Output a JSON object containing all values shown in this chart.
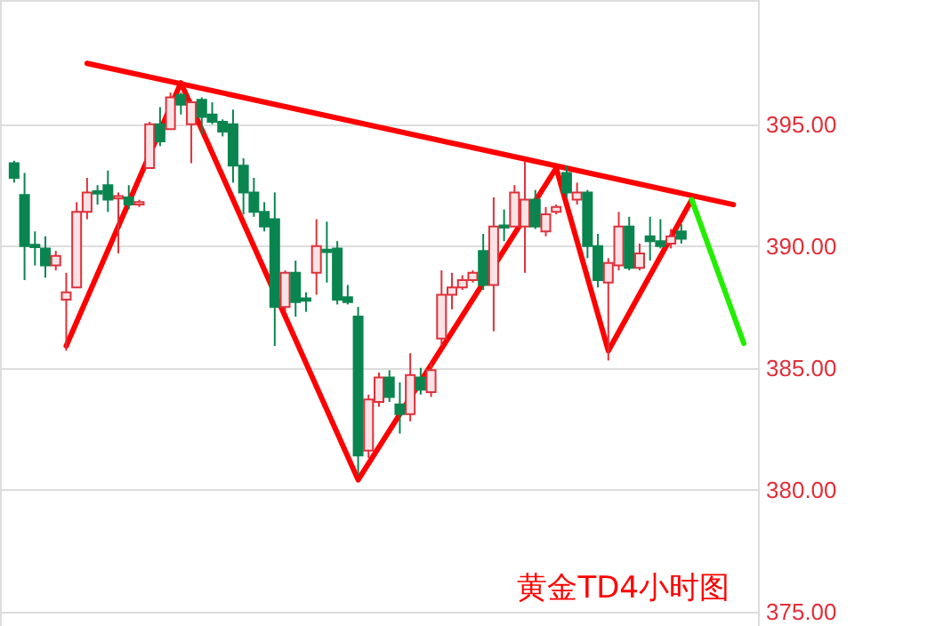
{
  "chart_data": {
    "type": "candlestick",
    "categories": [
      null,
      null,
      null,
      null,
      null,
      null,
      null,
      null,
      null,
      null,
      null,
      null,
      null,
      null,
      null,
      null,
      null,
      null,
      null,
      null,
      null,
      null,
      null,
      null,
      null,
      null,
      null,
      null,
      null,
      null,
      null,
      null,
      null,
      null,
      null,
      null,
      null,
      null,
      null,
      null,
      null,
      null,
      null,
      null,
      null,
      null,
      null,
      null,
      null,
      null,
      null,
      null,
      null,
      null,
      null,
      null,
      null,
      null,
      null,
      null,
      null,
      null,
      null,
      null,
      null,
      null,
      null,
      null,
      null,
      null,
      null
    ],
    "ohlc": [
      [
        393.4,
        393.5,
        392.6,
        392.8
      ],
      [
        392.1,
        393.0,
        388.6,
        390.0
      ],
      [
        390.05,
        390.6,
        389.2,
        389.95
      ],
      [
        389.9,
        390.4,
        388.7,
        389.2
      ],
      [
        389.2,
        389.8,
        389.0,
        389.6
      ],
      [
        387.8,
        388.9,
        385.7,
        388.1
      ],
      [
        388.3,
        391.8,
        388.3,
        391.4
      ],
      [
        391.4,
        392.8,
        391.1,
        392.2
      ],
      [
        392.25,
        392.5,
        391.7,
        392.15
      ],
      [
        392.5,
        393.1,
        391.4,
        391.9
      ],
      [
        391.95,
        392.2,
        389.7,
        392.05
      ],
      [
        392.0,
        392.5,
        391.5,
        391.7
      ],
      [
        391.7,
        391.9,
        391.6,
        391.8
      ],
      [
        393.2,
        395.1,
        393.2,
        395.0
      ],
      [
        395.0,
        395.7,
        394.1,
        394.3
      ],
      [
        394.8,
        396.3,
        394.8,
        396.1
      ],
      [
        396.2,
        396.3,
        395.4,
        395.8
      ],
      [
        395.0,
        396.0,
        393.4,
        395.9
      ],
      [
        396.0,
        396.1,
        394.6,
        395.3
      ],
      [
        395.4,
        395.9,
        395.0,
        395.1
      ],
      [
        395.1,
        395.2,
        394.5,
        394.7
      ],
      [
        395.0,
        395.6,
        392.6,
        393.3
      ],
      [
        393.3,
        393.6,
        391.3,
        392.2
      ],
      [
        392.2,
        392.8,
        391.2,
        391.4
      ],
      [
        391.4,
        391.8,
        390.6,
        390.8
      ],
      [
        391.1,
        392.2,
        385.9,
        387.5
      ],
      [
        387.5,
        389.0,
        387.3,
        388.9
      ],
      [
        388.9,
        389.4,
        387.1,
        387.7
      ],
      [
        387.85,
        388.1,
        387.3,
        387.75
      ],
      [
        388.9,
        391.1,
        388.0,
        390.0
      ],
      [
        389.85,
        391.0,
        388.5,
        389.75
      ],
      [
        389.9,
        390.2,
        387.6,
        387.8
      ],
      [
        387.9,
        388.4,
        387.6,
        387.7
      ],
      [
        387.1,
        387.5,
        380.6,
        381.4
      ],
      [
        381.6,
        383.9,
        381.3,
        383.7
      ],
      [
        383.6,
        384.8,
        383.4,
        384.6
      ],
      [
        384.6,
        384.9,
        383.6,
        383.8
      ],
      [
        383.5,
        384.4,
        382.3,
        383.1
      ],
      [
        383.1,
        385.6,
        382.8,
        384.7
      ],
      [
        384.6,
        385.0,
        383.9,
        384.1
      ],
      [
        384.0,
        385.2,
        383.8,
        384.9
      ],
      [
        386.2,
        389.0,
        385.9,
        388.0
      ],
      [
        388.0,
        388.9,
        387.4,
        388.3
      ],
      [
        388.3,
        388.8,
        388.2,
        388.6
      ],
      [
        388.6,
        389.0,
        388.5,
        388.9
      ],
      [
        389.8,
        390.5,
        388.2,
        388.4
      ],
      [
        388.4,
        392.0,
        386.5,
        390.8
      ],
      [
        390.85,
        391.5,
        390.2,
        390.75
      ],
      [
        390.8,
        392.5,
        390.8,
        392.2
      ],
      [
        390.8,
        393.5,
        388.9,
        391.9
      ],
      [
        391.9,
        392.3,
        390.7,
        390.8
      ],
      [
        390.6,
        391.6,
        390.4,
        391.3
      ],
      [
        391.4,
        391.7,
        391.3,
        391.6
      ],
      [
        393.0,
        393.3,
        392.0,
        392.2
      ],
      [
        391.9,
        392.6,
        391.7,
        392.2
      ],
      [
        392.2,
        392.3,
        389.5,
        390.0
      ],
      [
        390.0,
        390.5,
        388.3,
        388.6
      ],
      [
        388.5,
        389.5,
        385.3,
        389.3
      ],
      [
        389.2,
        391.4,
        389.0,
        390.8
      ],
      [
        390.8,
        391.2,
        389.0,
        389.1
      ],
      [
        389.1,
        390.1,
        389.0,
        389.7
      ],
      [
        390.4,
        391.2,
        389.4,
        390.2
      ],
      [
        390.2,
        391.1,
        389.9,
        390.0
      ],
      [
        390.1,
        390.7,
        389.9,
        390.4
      ],
      [
        390.6,
        390.9,
        390.1,
        390.3
      ],
      null,
      null,
      null,
      null,
      null,
      null
    ],
    "colors": [
      "#0a8550",
      "#0a8550",
      "#0a8550",
      "#0a8550",
      "#e0303a",
      "#e0303a",
      "#e0303a",
      "#e0303a",
      "#0a8550",
      "#0a8550",
      "#e0303a",
      "#0a8550",
      "#e0303a",
      "#e0303a",
      "#0a8550",
      "#e0303a",
      "#0a8550",
      "#e0303a",
      "#0a8550",
      "#0a8550",
      "#0a8550",
      "#0a8550",
      "#0a8550",
      "#0a8550",
      "#0a8550",
      "#0a8550",
      "#e0303a",
      "#0a8550",
      "#0a8550",
      "#e0303a",
      "#0a8550",
      "#0a8550",
      "#0a8550",
      "#0a8550",
      "#e0303a",
      "#e0303a",
      "#0a8550",
      "#0a8550",
      "#e0303a",
      "#0a8550",
      "#e0303a",
      "#e0303a",
      "#e0303a",
      "#e0303a",
      "#e0303a",
      "#0a8550",
      "#e0303a",
      "#0a8550",
      "#e0303a",
      "#e0303a",
      "#0a8550",
      "#e0303a",
      "#e0303a",
      "#0a8550",
      "#e0303a",
      "#0a8550",
      "#0a8550",
      "#e0303a",
      "#e0303a",
      "#0a8550",
      "#e0303a",
      "#0a8550",
      "#0a8550",
      "#e0303a",
      "#0a8550",
      null,
      null,
      null,
      null,
      null,
      null
    ],
    "series": [
      {
        "type": "line",
        "color": "#ff0000",
        "values": [
          null,
          null,
          null,
          null,
          null,
          null,
          null,
          397.5,
          null,
          null,
          null,
          null,
          null,
          null,
          null,
          null,
          null,
          null,
          null,
          null,
          null,
          null,
          null,
          null,
          null,
          null,
          null,
          null,
          null,
          null,
          null,
          null,
          null,
          null,
          null,
          null,
          null,
          null,
          null,
          null,
          null,
          null,
          null,
          null,
          null,
          null,
          null,
          null,
          null,
          null,
          null,
          null,
          null,
          null,
          null,
          null,
          null,
          null,
          null,
          null,
          null,
          null,
          null,
          null,
          null,
          null,
          null,
          null,
          null,
          391.7,
          null
        ]
      },
      {
        "type": "line",
        "color": "#ff0000",
        "values": [
          null,
          null,
          null,
          null,
          null,
          385.9,
          null,
          null,
          null,
          null,
          null,
          null,
          null,
          null,
          null,
          null,
          396.7,
          null,
          null,
          null,
          null,
          null,
          null,
          null,
          null,
          null,
          null,
          null,
          null,
          null,
          null,
          null,
          null,
          380.4,
          null,
          null,
          null,
          null,
          null,
          null,
          null,
          null,
          null,
          null,
          null,
          null,
          null,
          null,
          null,
          null,
          null,
          null,
          393.2,
          null,
          null,
          null,
          null,
          385.7,
          null,
          null,
          null,
          null,
          null,
          null,
          null,
          391.9,
          null,
          null,
          null,
          null,
          null
        ]
      },
      {
        "type": "line",
        "color": "#22ee00",
        "values": [
          null,
          null,
          null,
          null,
          null,
          null,
          null,
          null,
          null,
          null,
          null,
          null,
          null,
          null,
          null,
          null,
          null,
          null,
          null,
          null,
          null,
          null,
          null,
          null,
          null,
          null,
          null,
          null,
          null,
          null,
          null,
          null,
          null,
          null,
          null,
          null,
          null,
          null,
          null,
          null,
          null,
          null,
          null,
          null,
          null,
          null,
          null,
          null,
          null,
          null,
          null,
          null,
          null,
          null,
          null,
          null,
          null,
          null,
          null,
          null,
          null,
          null,
          null,
          null,
          null,
          391.9,
          null,
          null,
          null,
          null,
          386.0
        ]
      }
    ],
    "ylim": [
      374.4,
      400.1
    ],
    "yticks": [
      {
        "value": 375,
        "label": "375.00"
      },
      {
        "value": 380,
        "label": "380.00"
      },
      {
        "value": 385,
        "label": "385.00"
      },
      {
        "value": 390,
        "label": "390.00"
      },
      {
        "value": 395,
        "label": "395.00"
      }
    ],
    "tick_labels": "y",
    "grid": "y",
    "annotations": [
      "黄金TD4小时图"
    ]
  }
}
